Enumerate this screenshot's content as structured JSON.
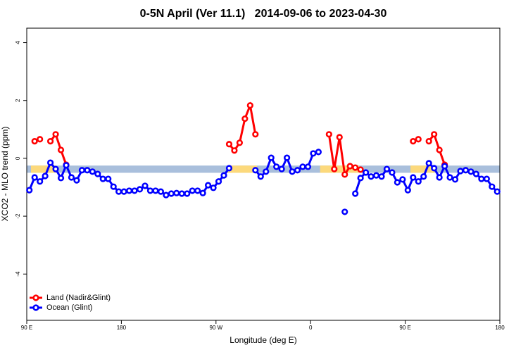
{
  "chart_data": {
    "type": "line",
    "title": "0-5N April (Ver 11.1)   2014-09-06 to 2023-04-30",
    "x_label": "Longitude (deg E)",
    "y_label": "XCO2 - MLO trend (ppm)",
    "xlim": [
      90,
      540
    ],
    "ylim": [
      -5.6,
      4.5
    ],
    "xticks": [
      {
        "value": 90,
        "label": "90 E"
      },
      180,
      {
        "value": 270,
        "label": "90 W"
      },
      {
        "value": 360,
        "label": "0"
      },
      {
        "value": 450,
        "label": "90 E"
      },
      {
        "value": 540,
        "label": "180"
      }
    ],
    "yticks": [
      -4,
      -2,
      0,
      2,
      4
    ],
    "legend": "bottomleft",
    "band": {
      "ylim": [
        -0.5,
        -0.25
      ],
      "color": "#a9bfdc",
      "land_color": "#fcd97c",
      "land": [
        [
          94,
          118
        ],
        [
          281,
          309
        ],
        [
          369,
          406
        ],
        [
          455,
          478
        ]
      ]
    },
    "x": [
      92.5,
      97.5,
      102.5,
      107.5,
      112.5,
      117.5,
      122.5,
      127.5,
      132.5,
      137.5,
      142.5,
      147.5,
      152.5,
      157.5,
      162.5,
      167.5,
      172.5,
      177.5,
      182.5,
      187.5,
      192.5,
      197.5,
      202.5,
      207.5,
      212.5,
      217.5,
      222.5,
      227.5,
      232.5,
      237.5,
      242.5,
      247.5,
      252.5,
      257.5,
      262.5,
      267.5,
      272.5,
      277.5,
      282.5,
      287.5,
      292.5,
      297.5,
      302.5,
      307.5,
      312.5,
      317.5,
      322.5,
      327.5,
      332.5,
      337.5,
      342.5,
      347.5,
      352.5,
      357.5,
      362.5,
      367.5,
      372.5,
      377.5,
      382.5,
      387.5,
      392.5,
      397.5,
      402.5,
      407.5,
      412.5,
      417.5,
      422.5,
      427.5,
      432.5,
      437.5,
      442.5,
      447.5,
      452.5,
      457.5,
      462.5,
      467.5,
      472.5,
      477.5,
      482.5,
      487.5,
      492.5,
      497.5,
      502.5,
      507.5,
      512.5,
      517.5,
      522.5,
      527.5,
      532.5,
      537.5
    ],
    "series": [
      {
        "name": "Land (Nadir&Glint)",
        "color": "#ff0000",
        "values": [
          null,
          0.59,
          0.66,
          null,
          0.59,
          0.83,
          0.29,
          -0.22,
          null,
          null,
          null,
          null,
          null,
          null,
          null,
          null,
          null,
          null,
          null,
          null,
          null,
          null,
          null,
          null,
          null,
          null,
          null,
          null,
          null,
          null,
          null,
          null,
          null,
          null,
          null,
          null,
          null,
          null,
          0.49,
          0.27,
          0.54,
          1.37,
          1.83,
          0.83,
          null,
          null,
          null,
          null,
          null,
          null,
          null,
          null,
          null,
          null,
          null,
          null,
          null,
          0.83,
          -0.37,
          0.73,
          -0.56,
          -0.27,
          -0.32,
          -0.39,
          null,
          null,
          null,
          null,
          null,
          null,
          null,
          null,
          null,
          0.59,
          0.66,
          null,
          0.59,
          0.83,
          0.29,
          -0.22,
          null,
          null,
          null,
          null,
          null,
          null,
          null,
          null,
          null,
          null
        ]
      },
      {
        "name": "Ocean (Glint)",
        "color": "#0000ff",
        "values": [
          -1.1,
          -0.66,
          -0.8,
          -0.61,
          -0.15,
          -0.37,
          -0.68,
          -0.24,
          -0.66,
          -0.76,
          -0.41,
          -0.41,
          -0.46,
          -0.54,
          -0.71,
          -0.71,
          -0.98,
          -1.15,
          -1.15,
          -1.12,
          -1.12,
          -1.07,
          -0.95,
          -1.12,
          -1.12,
          -1.15,
          -1.27,
          -1.22,
          -1.2,
          -1.22,
          -1.22,
          -1.12,
          -1.12,
          -1.2,
          -0.93,
          -1.02,
          -0.8,
          -0.59,
          -0.34,
          null,
          null,
          null,
          null,
          -0.41,
          -0.63,
          -0.46,
          0.02,
          -0.29,
          -0.37,
          0.02,
          -0.46,
          -0.41,
          -0.29,
          -0.29,
          0.17,
          0.22,
          null,
          null,
          null,
          null,
          -1.85,
          null,
          -1.22,
          -0.68,
          -0.49,
          -0.63,
          -0.59,
          -0.63,
          -0.37,
          -0.49,
          -0.83,
          -0.73,
          -1.1,
          -0.66,
          -0.8,
          -0.63,
          -0.17,
          -0.34,
          -0.66,
          -0.27,
          -0.66,
          -0.73,
          -0.44,
          -0.41,
          -0.46,
          -0.54,
          -0.71,
          -0.71,
          -0.98,
          -1.15
        ]
      }
    ]
  }
}
